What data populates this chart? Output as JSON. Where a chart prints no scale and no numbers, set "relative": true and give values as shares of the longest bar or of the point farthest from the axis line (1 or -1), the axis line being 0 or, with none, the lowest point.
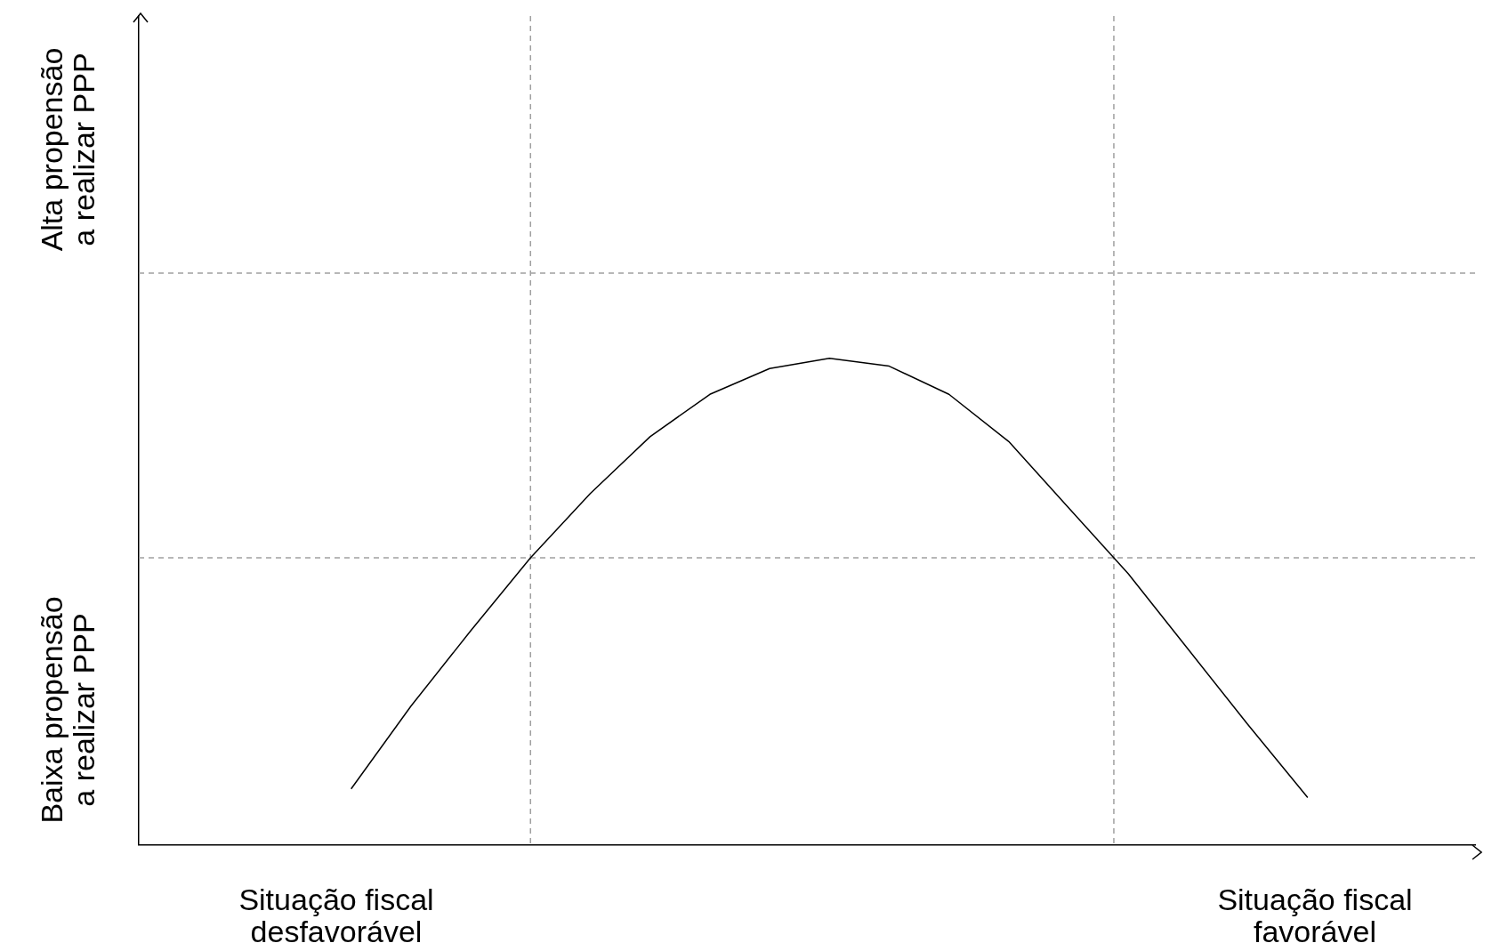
{
  "chart_data": {
    "type": "line",
    "relative": true,
    "grid": false,
    "legend": false,
    "categories": [
      null,
      null,
      null,
      null,
      null,
      null,
      null,
      null,
      null,
      null,
      null,
      null,
      null,
      null,
      null,
      null,
      null
    ],
    "series": [
      {
        "color": "#000000",
        "values": [
          0.115,
          0.285,
          0.44,
          0.59,
          0.722,
          0.839,
          0.926,
          0.979,
          1,
          0.984,
          0.926,
          0.829,
          0.693,
          0.557,
          0.402,
          0.247,
          0.097
        ]
      }
    ],
    "ref_lines": [
      {
        "axis": "y",
        "value": 0.59,
        "color": "#a0a0a0",
        "line_style": "dashed"
      },
      {
        "axis": "y",
        "value": 1.175,
        "color": "#a0a0a0",
        "line_style": "dashed"
      }
    ],
    "annotations": [
      "Alta propensão\na realizar PPP",
      "Baixa propensão\na realizar PPP",
      "Situação fiscal\ndesfavorável",
      "Situação fiscal\nfavorável"
    ]
  }
}
